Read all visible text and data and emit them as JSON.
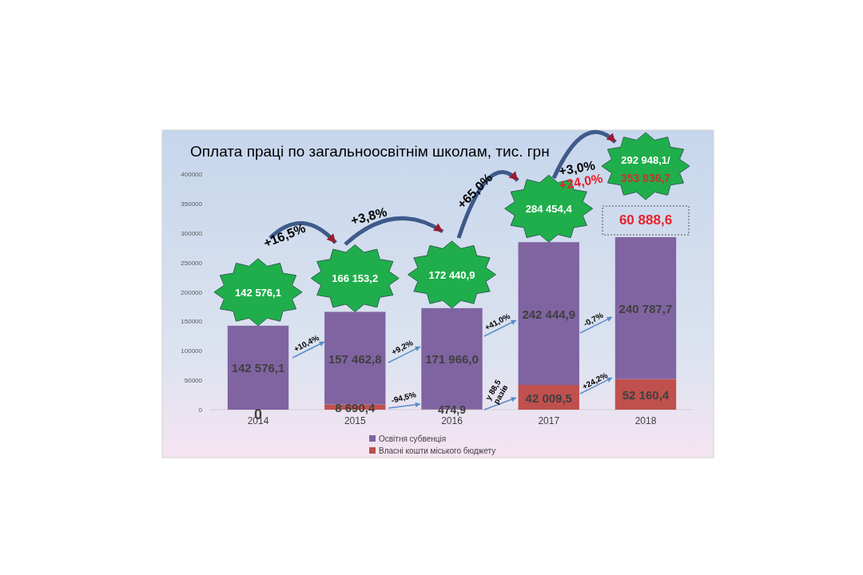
{
  "chart_data": {
    "type": "bar",
    "stacked": true,
    "title": "Оплата праці по загальноосвітнім школам, тис. грн",
    "categories": [
      "2014",
      "2015",
      "2016",
      "2017",
      "2018"
    ],
    "series": [
      {
        "name": "Власні кошти міського бюджету",
        "color": "#c0504d",
        "values": [
          0,
          8690.4,
          474.9,
          42009.5,
          52160.4
        ],
        "value_labels": [
          null,
          "8 690,4",
          "474,9",
          "42 009,5",
          "52 160,4"
        ]
      },
      {
        "name": "Освітня субвенція",
        "color": "#8064a2",
        "values": [
          142576.1,
          157462.8,
          171966.0,
          242444.9,
          240787.7
        ],
        "value_labels": [
          "142 576,1",
          "157 462,8",
          "171 966,0",
          "242 444,9",
          "240 787,7"
        ]
      }
    ],
    "totals": [
      "142 576,1",
      "166 153,2",
      "172 440,9",
      "284 454,4",
      null
    ],
    "annotations": [
      "+16,5%",
      "+3,8%",
      "+65,0%",
      "+3,0%",
      "+24,0%",
      "353 836,7",
      "60 888,6",
      "+10,4%",
      "+9,2%",
      "+41,0%",
      "-0,7%",
      "-94,5%",
      "у 88,5 разів",
      "+24,2%",
      "292 948,1/",
      {
        "text": "0",
        "x": "2014",
        "y": 0
      }
    ],
    "ylim": [
      0,
      400000
    ],
    "yticks": [
      0,
      50000,
      100000,
      150000,
      200000,
      250000,
      300000,
      350000,
      400000
    ],
    "legend": "bottom"
  }
}
